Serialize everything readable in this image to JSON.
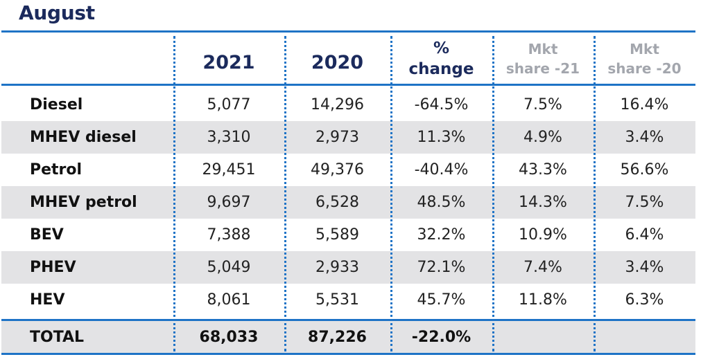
{
  "title": "August",
  "chart_data": {
    "type": "table",
    "columns": [
      {
        "key": "y2021",
        "label": "2021"
      },
      {
        "key": "y2020",
        "label": "2020"
      },
      {
        "key": "change",
        "label_line1": "%",
        "label_line2": "change"
      },
      {
        "key": "mkt21",
        "label_line1": "Mkt",
        "label_line2": "share -21"
      },
      {
        "key": "mkt20",
        "label_line1": "Mkt",
        "label_line2": "share -20"
      }
    ],
    "rows": [
      {
        "label": "Diesel",
        "cells": [
          "5,077",
          "14,296",
          "-64.5%",
          "7.5%",
          "16.4%"
        ],
        "shaded": false
      },
      {
        "label": "MHEV diesel",
        "cells": [
          "3,310",
          "2,973",
          "11.3%",
          "4.9%",
          "3.4%"
        ],
        "shaded": true
      },
      {
        "label": "Petrol",
        "cells": [
          "29,451",
          "49,376",
          "-40.4%",
          "43.3%",
          "56.6%"
        ],
        "shaded": false
      },
      {
        "label": "MHEV petrol",
        "cells": [
          "9,697",
          "6,528",
          "48.5%",
          "14.3%",
          "7.5%"
        ],
        "shaded": true
      },
      {
        "label": "BEV",
        "cells": [
          "7,388",
          "5,589",
          "32.2%",
          "10.9%",
          "6.4%"
        ],
        "shaded": false
      },
      {
        "label": "PHEV",
        "cells": [
          "5,049",
          "2,933",
          "72.1%",
          "7.4%",
          "3.4%"
        ],
        "shaded": true
      },
      {
        "label": "HEV",
        "cells": [
          "8,061",
          "5,531",
          "45.7%",
          "11.8%",
          "6.3%"
        ],
        "shaded": false
      }
    ],
    "total": {
      "label": "TOTAL",
      "cells": [
        "68,033",
        "87,226",
        "-22.0%",
        "",
        ""
      ]
    },
    "colors": {
      "accent": "#1e73c6",
      "header_text": "#1b2a5c",
      "muted_header": "#a3a6ad",
      "shade": "#e3e3e5"
    }
  }
}
